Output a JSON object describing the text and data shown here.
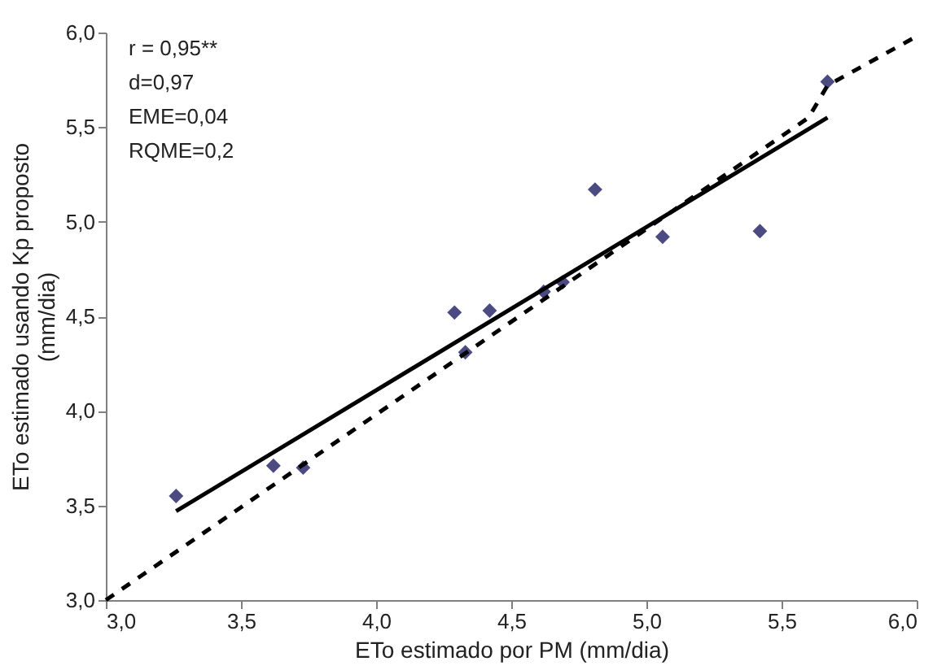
{
  "chart_data": {
    "type": "scatter",
    "xlabel": "ETo estimado por PM (mm/dia)",
    "ylabel": "ETo estimado usando Kp proposto (mm/dia)",
    "annotations": [
      "r = 0,95**",
      "d=0,97",
      "EME=0,04",
      "RQME=0,2"
    ],
    "series": [
      {
        "color": "#4b4b82",
        "marker": "diamond",
        "x": [
          3.26,
          3.62,
          3.73,
          4.29,
          4.33,
          4.42,
          4.62,
          4.69,
          4.81,
          5.06,
          5.42,
          5.67
        ],
        "values": [
          3.55,
          3.71,
          3.7,
          4.52,
          4.31,
          4.53,
          4.63,
          4.68,
          5.17,
          4.92,
          4.95,
          5.74
        ]
      },
      {
        "type": "line",
        "color": "#000000",
        "line_style": "solid",
        "x": [
          3.26,
          5.67
        ],
        "values": [
          3.47,
          5.55
        ]
      },
      {
        "type": "line",
        "color": "#000000",
        "line_style": "dashed",
        "x": [
          3.0,
          5.6,
          5.67,
          6.0
        ],
        "values": [
          3.0,
          5.55,
          5.72,
          5.98
        ]
      }
    ],
    "xlim": [
      3.0,
      6.0
    ],
    "ylim": [
      3.0,
      6.0
    ],
    "xticks": [
      {
        "value": 3.0,
        "label": "3,0"
      },
      {
        "value": 3.5,
        "label": "3,5"
      },
      {
        "value": 4.0,
        "label": "4,0"
      },
      {
        "value": 4.5,
        "label": "4,5"
      },
      {
        "value": 5.0,
        "label": "5,0"
      },
      {
        "value": 5.5,
        "label": "5,5"
      },
      {
        "value": 6.0,
        "label": "6,0"
      }
    ],
    "yticks": [
      {
        "value": 3.0,
        "label": "3,0"
      },
      {
        "value": 3.5,
        "label": "3,5"
      },
      {
        "value": 4.0,
        "label": "4,0"
      },
      {
        "value": 4.5,
        "label": "4,5"
      },
      {
        "value": 5.0,
        "label": "5,0"
      },
      {
        "value": 5.5,
        "label": "5,5"
      },
      {
        "value": 6.0,
        "label": "6,0"
      }
    ],
    "grid": false
  }
}
